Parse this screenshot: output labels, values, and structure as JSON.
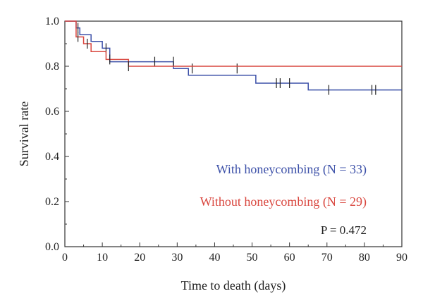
{
  "chart_data": {
    "type": "line",
    "subtype": "kaplan-meier-step",
    "xlabel": "Time to death (days)",
    "ylabel": "Survival rate",
    "xlim": [
      0,
      90
    ],
    "ylim": [
      0.0,
      1.0
    ],
    "x_ticks": [
      0,
      10,
      20,
      30,
      40,
      50,
      60,
      70,
      80,
      90
    ],
    "y_ticks": [
      0.0,
      0.2,
      0.4,
      0.6,
      0.8,
      1.0
    ],
    "y_tick_labels": [
      "0.0",
      "0.2",
      "0.4",
      "0.6",
      "0.8",
      "1.0"
    ],
    "grid": false,
    "legend_position": "lower-right",
    "series": [
      {
        "name": "With honeycombing (N = 33)",
        "color": "#3c50a8",
        "steps": [
          [
            0,
            1.0
          ],
          [
            3,
            0.97
          ],
          [
            4,
            0.94
          ],
          [
            7,
            0.91
          ],
          [
            10,
            0.88
          ],
          [
            12,
            0.82
          ],
          [
            29,
            0.79
          ],
          [
            33,
            0.76
          ],
          [
            51,
            0.725
          ],
          [
            65,
            0.695
          ],
          [
            90,
            0.695
          ]
        ],
        "censored": [
          [
            3.5,
            0.97
          ],
          [
            11,
            0.88
          ],
          [
            24,
            0.82
          ],
          [
            29,
            0.82
          ],
          [
            34,
            0.79
          ],
          [
            46,
            0.79
          ],
          [
            56.5,
            0.725
          ],
          [
            57.5,
            0.725
          ],
          [
            60,
            0.725
          ],
          [
            70.5,
            0.695
          ],
          [
            82,
            0.695
          ],
          [
            83,
            0.695
          ]
        ]
      },
      {
        "name": "Without honeycombing (N = 29)",
        "color": "#d9463e",
        "steps": [
          [
            0,
            1.0
          ],
          [
            3,
            0.93
          ],
          [
            5,
            0.9
          ],
          [
            7,
            0.865
          ],
          [
            11,
            0.83
          ],
          [
            17,
            0.8
          ],
          [
            90,
            0.8
          ]
        ],
        "censored": [
          [
            3.5,
            0.93
          ],
          [
            6,
            0.9
          ],
          [
            12,
            0.83
          ],
          [
            17,
            0.8
          ]
        ]
      }
    ],
    "annotations": {
      "p_value": "P = 0.472"
    }
  }
}
